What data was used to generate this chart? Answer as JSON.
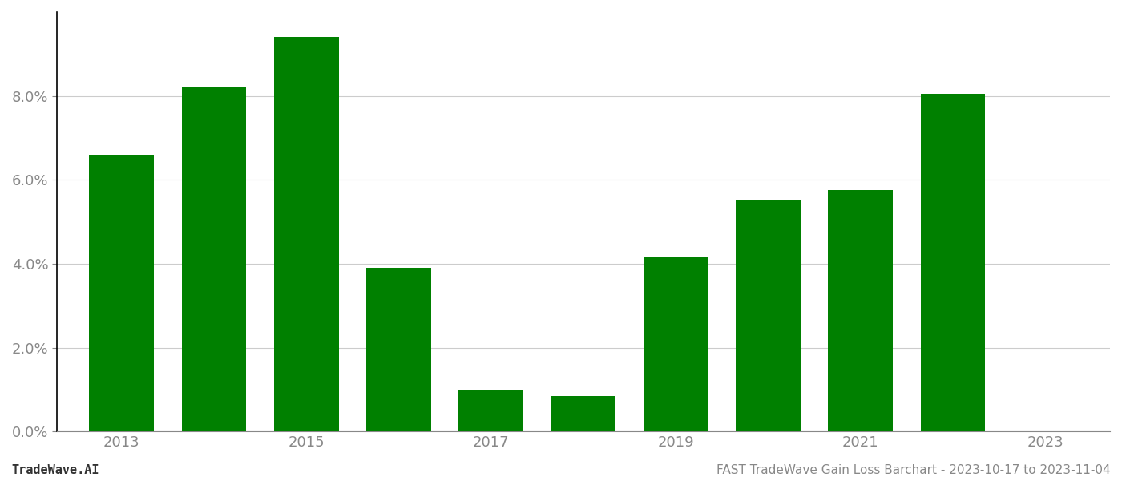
{
  "years": [
    2013,
    2014,
    2015,
    2016,
    2017,
    2018,
    2019,
    2020,
    2021,
    2022
  ],
  "values": [
    0.066,
    0.082,
    0.094,
    0.039,
    0.01,
    0.0085,
    0.0415,
    0.055,
    0.0575,
    0.0805
  ],
  "bar_color": "#008000",
  "background_color": "#ffffff",
  "ylim": [
    0,
    0.1
  ],
  "yticks": [
    0.0,
    0.02,
    0.04,
    0.06,
    0.08
  ],
  "xtick_labels": [
    "2013",
    "",
    "2015",
    "",
    "2017",
    "",
    "2019",
    "",
    "2021",
    "",
    "2023"
  ],
  "xlabel": "",
  "ylabel": "",
  "footer_left": "TradeWave.AI",
  "footer_right": "FAST TradeWave Gain Loss Barchart - 2023-10-17 to 2023-11-04",
  "footer_fontsize": 11,
  "grid_color": "#cccccc",
  "tick_label_color": "#888888",
  "left_spine_color": "#000000",
  "bottom_spine_color": "#888888",
  "bar_width": 0.7
}
